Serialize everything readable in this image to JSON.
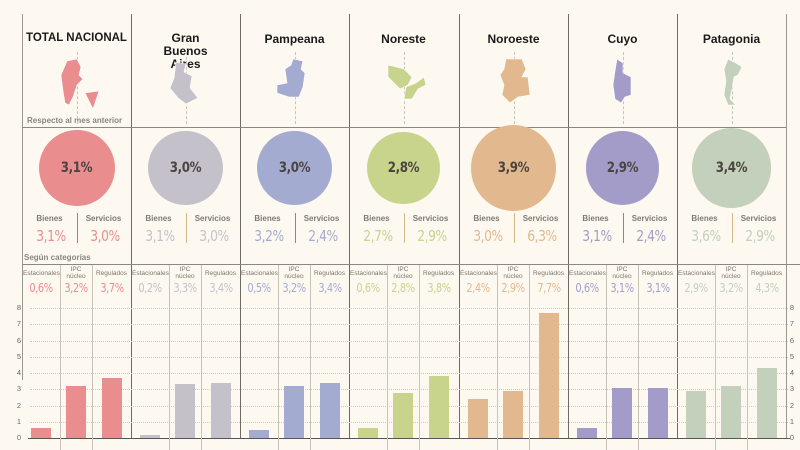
{
  "subheads": {
    "monthly": "Respecto al mes anterior",
    "categories": "Según categorías"
  },
  "labels": {
    "bienes": "Bienes",
    "servicios": "Servicios",
    "estacionales": "Estacionales",
    "ipc_nucleo": "IPC núcleo",
    "regulados": "Regulados"
  },
  "regions": [
    {
      "name": "TOTAL NACIONAL",
      "color": "#e98d8e",
      "total": "3,1%",
      "bienes": "3,1%",
      "servicios": "3,0%",
      "estacionales": "0,6%",
      "ipc_nucleo": "3,2%",
      "regulados": "3,7%",
      "map_icon": "argentina-map-icon"
    },
    {
      "name": "Gran Buenos Aires",
      "color": "#c4c1cb",
      "total": "3,0%",
      "bienes": "3,1%",
      "servicios": "3,0%",
      "estacionales": "0,2%",
      "ipc_nucleo": "3,3%",
      "regulados": "3,4%",
      "map_icon": "gba-map-icon"
    },
    {
      "name": "Pampeana",
      "color": "#a3acd0",
      "total": "3,0%",
      "bienes": "3,2%",
      "servicios": "2,4%",
      "estacionales": "0,5%",
      "ipc_nucleo": "3,2%",
      "regulados": "3,4%",
      "map_icon": "pampeana-map-icon"
    },
    {
      "name": "Noreste",
      "color": "#c8d38c",
      "total": "2,8%",
      "bienes": "2,7%",
      "servicios": "2,9%",
      "estacionales": "0,6%",
      "ipc_nucleo": "2,8%",
      "regulados": "3,8%",
      "map_icon": "noreste-map-icon"
    },
    {
      "name": "Noroeste",
      "color": "#e2b98e",
      "total": "3,9%",
      "bienes": "3,0%",
      "servicios": "6,3%",
      "estacionales": "2,4%",
      "ipc_nucleo": "2,9%",
      "regulados": "7,7%",
      "map_icon": "noroeste-map-icon"
    },
    {
      "name": "Cuyo",
      "color": "#a49cc8",
      "total": "2,9%",
      "bienes": "3,1%",
      "servicios": "2,4%",
      "estacionales": "0,6%",
      "ipc_nucleo": "3,1%",
      "regulados": "3,1%",
      "map_icon": "cuyo-map-icon"
    },
    {
      "name": "Patagonia",
      "color": "#c3d0bb",
      "total": "3,4%",
      "bienes": "3,6%",
      "servicios": "2,9%",
      "estacionales": "2,9%",
      "ipc_nucleo": "3,2%",
      "regulados": "4,3%",
      "map_icon": "patagonia-map-icon"
    }
  ],
  "chart_data": {
    "type": "bar",
    "title": "Según categorías",
    "categories": [
      "Estacionales",
      "IPC núcleo",
      "Regulados"
    ],
    "groups": [
      "TOTAL NACIONAL",
      "Gran Buenos Aires",
      "Pampeana",
      "Noreste",
      "Noroeste",
      "Cuyo",
      "Patagonia"
    ],
    "series": [
      {
        "name": "TOTAL NACIONAL",
        "values": [
          0.6,
          3.2,
          3.7
        ]
      },
      {
        "name": "Gran Buenos Aires",
        "values": [
          0.2,
          3.3,
          3.4
        ]
      },
      {
        "name": "Pampeana",
        "values": [
          0.5,
          3.2,
          3.4
        ]
      },
      {
        "name": "Noreste",
        "values": [
          0.6,
          2.8,
          3.8
        ]
      },
      {
        "name": "Noroeste",
        "values": [
          2.4,
          2.9,
          7.7
        ]
      },
      {
        "name": "Cuyo",
        "values": [
          0.6,
          3.1,
          3.1
        ]
      },
      {
        "name": "Patagonia",
        "values": [
          2.9,
          3.2,
          4.3
        ]
      }
    ],
    "circle_totals": [
      3.1,
      3.0,
      3.0,
      2.8,
      3.9,
      2.9,
      3.4
    ],
    "ylim": [
      0,
      8
    ],
    "yticks": [
      "0",
      "1",
      "2",
      "3",
      "4",
      "5",
      "6",
      "7",
      "8"
    ],
    "grid": true,
    "xlabel": "",
    "ylabel": ""
  }
}
